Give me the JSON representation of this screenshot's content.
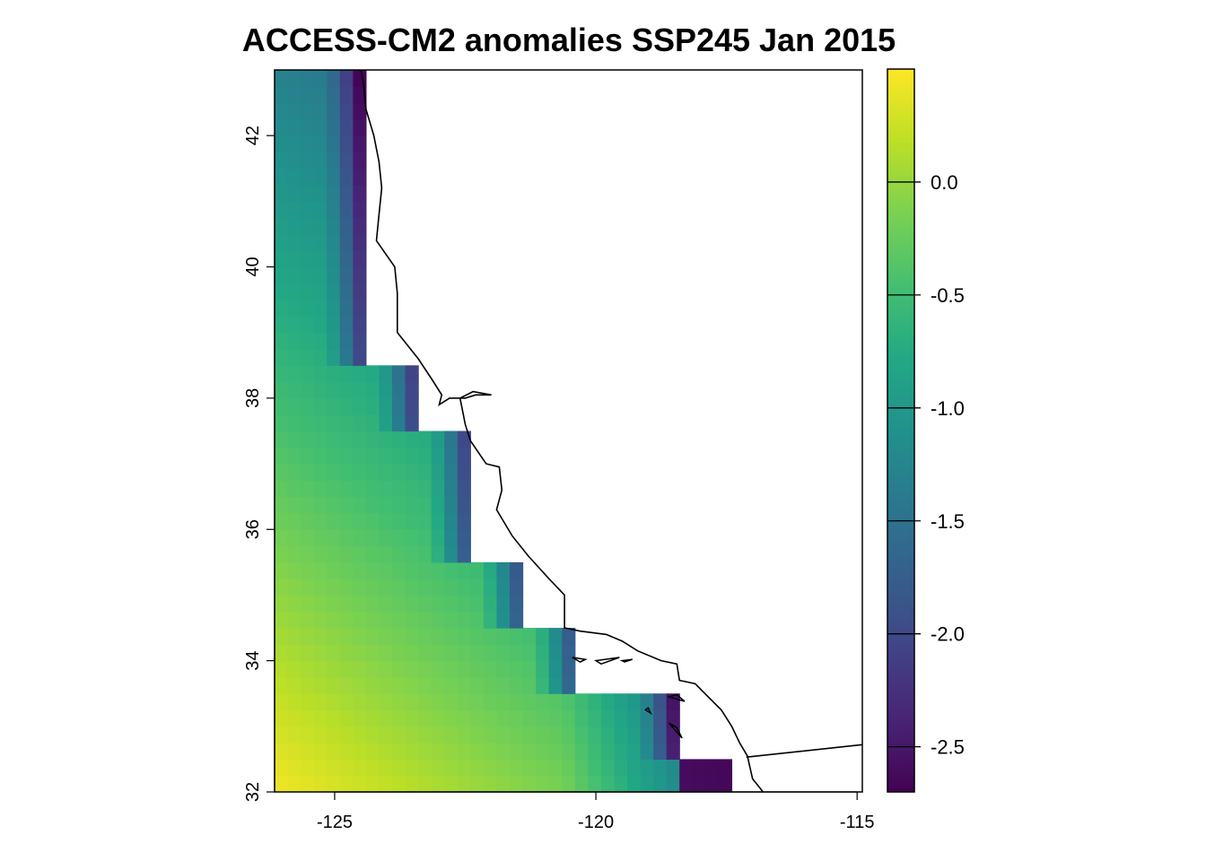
{
  "chart_data": {
    "type": "heatmap",
    "title": "ACCESS-CM2 anomalies SSP245 Jan 2015",
    "xlabel": "",
    "ylabel": "",
    "x_ticks": [
      -125,
      -120,
      -115
    ],
    "y_ticks": [
      32,
      34,
      36,
      38,
      40,
      42
    ],
    "x_tick_labels": [
      "-125",
      "-120",
      "-115"
    ],
    "y_tick_labels": [
      "32",
      "34",
      "36",
      "38",
      "40",
      "42"
    ],
    "xlim": [
      -126.15,
      -114.9
    ],
    "ylim": [
      32,
      43.0
    ],
    "cell_size_deg": 0.25,
    "colorscale": "viridis",
    "colorbar": {
      "range": [
        -2.7,
        0.5
      ],
      "ticks": [
        0.0,
        -0.5,
        -1.0,
        -1.5,
        -2.0,
        -2.5
      ],
      "tick_labels": [
        "0.0",
        "-0.5",
        "-1.0",
        "-1.5",
        "-2.0",
        "-2.5"
      ]
    },
    "ocean_extent": [
      {
        "lat_range": [
          38.5,
          43.0
        ],
        "lon_max": -124.4
      },
      {
        "lat_range": [
          37.5,
          38.5
        ],
        "lon_max": -123.4
      },
      {
        "lat_range": [
          35.5,
          37.5
        ],
        "lon_max": -122.4
      },
      {
        "lat_range": [
          34.5,
          35.5
        ],
        "lon_max": -121.4
      },
      {
        "lat_range": [
          33.5,
          34.5
        ],
        "lon_max": -120.4
      },
      {
        "lat_range": [
          32.5,
          33.5
        ],
        "lon_max": -118.4
      },
      {
        "lat_range": [
          32.0,
          32.5
        ],
        "lon_max": -117.4
      }
    ],
    "value_model": {
      "west_value_south": 0.45,
      "west_value_north": -1.3,
      "coastal_drop": -1.5,
      "coastal_band_deg": 0.8,
      "far_southeast_value": -2.6
    },
    "coastline": [
      [
        -124.5,
        43.0
      ],
      [
        -124.45,
        42.8
      ],
      [
        -124.4,
        42.4
      ],
      [
        -124.25,
        42.0
      ],
      [
        -124.15,
        41.6
      ],
      [
        -124.1,
        41.2
      ],
      [
        -124.15,
        40.8
      ],
      [
        -124.2,
        40.4
      ],
      [
        -123.85,
        40.0
      ],
      [
        -123.8,
        39.6
      ],
      [
        -123.8,
        39.0
      ],
      [
        -123.4,
        38.6
      ],
      [
        -123.15,
        38.3
      ],
      [
        -122.95,
        38.05
      ],
      [
        -123.0,
        37.9
      ],
      [
        -122.8,
        38.0
      ],
      [
        -122.5,
        38.0
      ],
      [
        -122.3,
        38.05
      ],
      [
        -122.0,
        38.05
      ],
      [
        -122.35,
        38.1
      ],
      [
        -122.6,
        38.0
      ],
      [
        -122.55,
        37.8
      ],
      [
        -122.5,
        37.6
      ],
      [
        -122.4,
        37.35
      ],
      [
        -122.1,
        37.0
      ],
      [
        -121.85,
        36.95
      ],
      [
        -121.8,
        36.6
      ],
      [
        -121.9,
        36.3
      ],
      [
        -121.6,
        35.9
      ],
      [
        -121.3,
        35.6
      ],
      [
        -120.9,
        35.25
      ],
      [
        -120.6,
        35.0
      ],
      [
        -120.6,
        34.5
      ],
      [
        -120.3,
        34.45
      ],
      [
        -119.8,
        34.4
      ],
      [
        -119.5,
        34.3
      ],
      [
        -119.2,
        34.15
      ],
      [
        -118.75,
        34.0
      ],
      [
        -118.45,
        33.95
      ],
      [
        -118.4,
        33.7
      ],
      [
        -118.1,
        33.65
      ],
      [
        -117.85,
        33.45
      ],
      [
        -117.6,
        33.25
      ],
      [
        -117.4,
        33.0
      ],
      [
        -117.25,
        32.75
      ],
      [
        -117.1,
        32.55
      ],
      [
        -117.0,
        32.2
      ],
      [
        -116.8,
        32.0
      ]
    ],
    "border": [
      [
        -117.12,
        32.53
      ],
      [
        -114.9,
        32.72
      ]
    ],
    "islands": [
      [
        [
          -120.45,
          34.05
        ],
        [
          -120.2,
          34.02
        ],
        [
          -120.3,
          33.98
        ]
      ],
      [
        [
          -120.0,
          34.0
        ],
        [
          -119.55,
          34.05
        ],
        [
          -119.9,
          33.95
        ]
      ],
      [
        [
          -119.5,
          34.0
        ],
        [
          -119.3,
          34.02
        ],
        [
          -119.45,
          33.98
        ]
      ],
      [
        [
          -118.6,
          33.45
        ],
        [
          -118.3,
          33.38
        ],
        [
          -118.45,
          33.48
        ]
      ],
      [
        [
          -119.05,
          33.25
        ],
        [
          -118.95,
          33.2
        ],
        [
          -119.0,
          33.28
        ]
      ],
      [
        [
          -118.6,
          33.05
        ],
        [
          -118.35,
          32.82
        ],
        [
          -118.45,
          32.98
        ]
      ]
    ]
  }
}
